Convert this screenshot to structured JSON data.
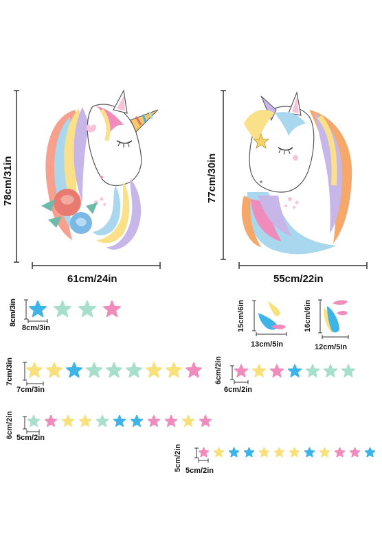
{
  "unicorn_left": {
    "height_label": "78cm/31in",
    "width_label": "61cm/24in"
  },
  "unicorn_right": {
    "height_label": "77cm/30in",
    "width_label": "55cm/22in"
  },
  "star_set_8": {
    "height_label": "8cm/3in",
    "width_label": "8cm/3in",
    "stars": [
      "blue",
      "mint",
      "mint",
      "pink"
    ]
  },
  "drops_15": {
    "height_label": "15cm/6in",
    "width_label": "13cm/5in"
  },
  "drops_16": {
    "height_label": "16cm/6in",
    "width_label": "12cm/5in"
  },
  "star_set_7": {
    "height_label": "7cm/3in",
    "width_label": "7cm/3in",
    "stars": [
      "yellow",
      "yellow",
      "blue",
      "mint",
      "mint",
      "mint",
      "yellow",
      "yellow",
      "pink"
    ]
  },
  "star_set_6a": {
    "height_label": "6cm/2in",
    "width_label": "6cm/2in",
    "stars": [
      "pink",
      "yellow",
      "pink",
      "blue",
      "mint",
      "mint",
      "mint"
    ]
  },
  "star_set_6b": {
    "height_label": "6cm/2in",
    "width_label": "5cm/2in",
    "stars": [
      "mint",
      "pink",
      "yellow",
      "yellow",
      "mint",
      "blue",
      "blue",
      "pink",
      "pink",
      "yellow",
      "pink"
    ]
  },
  "star_set_5": {
    "height_label": "5cm/2in",
    "width_label": "5cm/2in",
    "stars": [
      "pink",
      "yellow",
      "blue",
      "blue",
      "yellow",
      "yellow",
      "yellow",
      "blue",
      "yellow",
      "pink",
      "pink",
      "blue"
    ]
  },
  "colors": {
    "blue": "#3db3e8",
    "mint": "#a8dfcc",
    "pink": "#f08cbc",
    "yellow": "#f8e07c",
    "orange": "#f5a86a",
    "purple": "#b9a7e0",
    "red": "#e86a6a",
    "text": "#111111"
  }
}
